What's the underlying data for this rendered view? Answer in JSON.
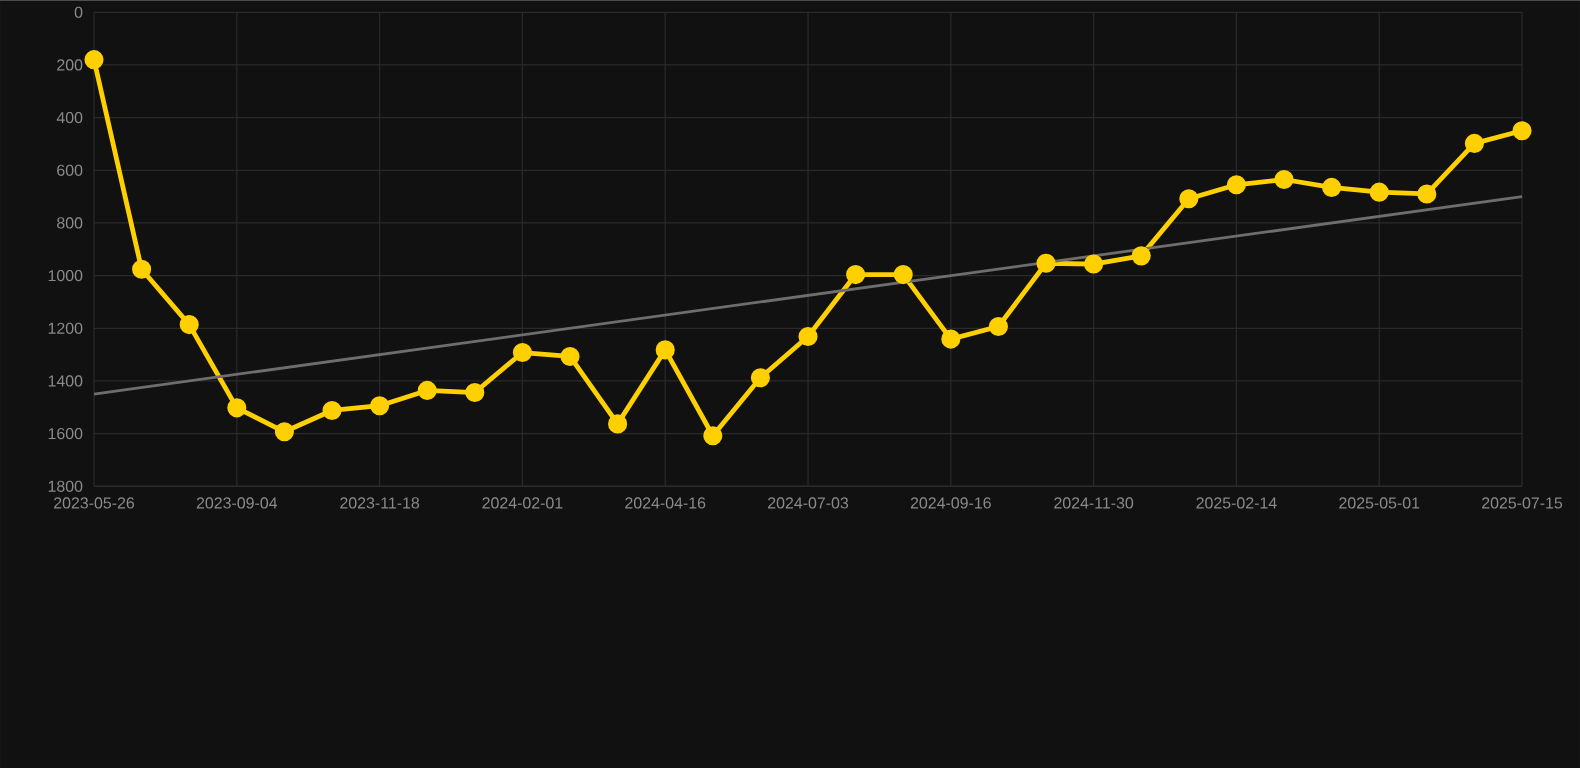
{
  "chart_data": {
    "type": "line",
    "categories": [
      "2023-05-26",
      null,
      null,
      "2023-09-04",
      null,
      null,
      "2023-11-18",
      null,
      null,
      "2024-02-01",
      null,
      null,
      "2024-04-16",
      null,
      null,
      "2024-07-03",
      null,
      null,
      "2024-09-16",
      null,
      null,
      "2024-11-30",
      null,
      null,
      "2025-02-14",
      null,
      null,
      "2025-05-01",
      null,
      null,
      "2025-07-15"
    ],
    "series": [
      {
        "color": "#ffd000",
        "marker": "circle",
        "values": [
          180,
          976,
          1186,
          1502,
          1593,
          1512,
          1494,
          1436,
          1444,
          1292,
          1307,
          1563,
          1282,
          1608,
          1388,
          1231,
          996,
          996,
          1241,
          1193,
          953,
          956,
          925,
          708,
          655,
          635,
          665,
          683,
          690,
          498,
          450
        ]
      },
      {
        "type": "line",
        "color": "#6e6e6e",
        "marker": "none",
        "values": [
          1450,
          null,
          null,
          null,
          null,
          null,
          null,
          null,
          null,
          null,
          null,
          null,
          null,
          null,
          null,
          null,
          null,
          null,
          null,
          null,
          null,
          null,
          null,
          null,
          null,
          null,
          null,
          null,
          null,
          null,
          700
        ]
      }
    ],
    "ylim": [
      1800,
      0
    ],
    "yticks": [
      0,
      200,
      400,
      600,
      800,
      1000,
      1200,
      1400,
      1600,
      1800
    ],
    "grid": true
  }
}
